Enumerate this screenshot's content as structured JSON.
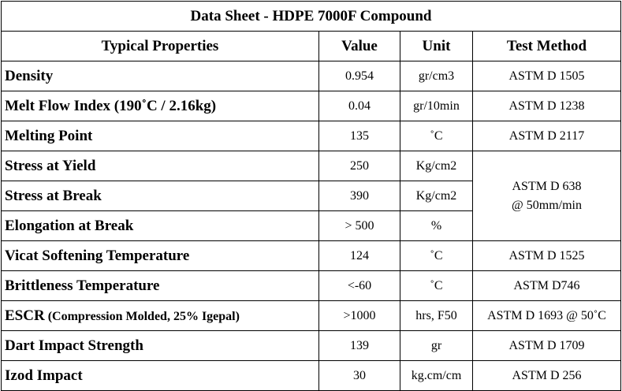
{
  "title": "Data Sheet - HDPE 7000F Compound",
  "headers": {
    "property": "Typical Properties",
    "value": "Value",
    "unit": "Unit",
    "method": "Test Method"
  },
  "rows": [
    {
      "property": "Density",
      "value": "0.954",
      "unit": "gr/cm3",
      "method": "ASTM D 1505"
    },
    {
      "property": "Melt Flow Index (190˚C / 2.16kg)",
      "value": "0.04",
      "unit": "gr/10min",
      "method": "ASTM D 1238"
    },
    {
      "property": "Melting Point",
      "value": "135",
      "unit": "˚C",
      "method": "ASTM D 2117"
    },
    {
      "property": "Stress at Yield",
      "value": "250",
      "unit": "Kg/cm2"
    },
    {
      "property": "Stress at Break",
      "value": "390",
      "unit": "Kg/cm2"
    },
    {
      "property": "Elongation at Break",
      "value": "> 500",
      "unit": "%"
    },
    {
      "property": "Vicat Softening Temperature",
      "value": "124",
      "unit": "˚C",
      "method": "ASTM D 1525"
    },
    {
      "property": "Brittleness Temperature",
      "value": "<-60",
      "unit": "˚C",
      "method": "ASTM D746"
    },
    {
      "property": "ESCR",
      "property_suffix": " (Compression Molded, 25% Igepal)",
      "value": ">1000",
      "unit": "hrs, F50",
      "method": "ASTM D 1693 @ 50˚C"
    },
    {
      "property": "Dart Impact Strength",
      "value": "139",
      "unit": "gr",
      "method": "ASTM D 1709"
    },
    {
      "property": "Izod Impact",
      "value": "30",
      "unit": "kg.cm/cm",
      "method": "ASTM D 256"
    }
  ],
  "merged_method": {
    "line1": "ASTM D 638",
    "line2": "@ 50mm/min"
  }
}
